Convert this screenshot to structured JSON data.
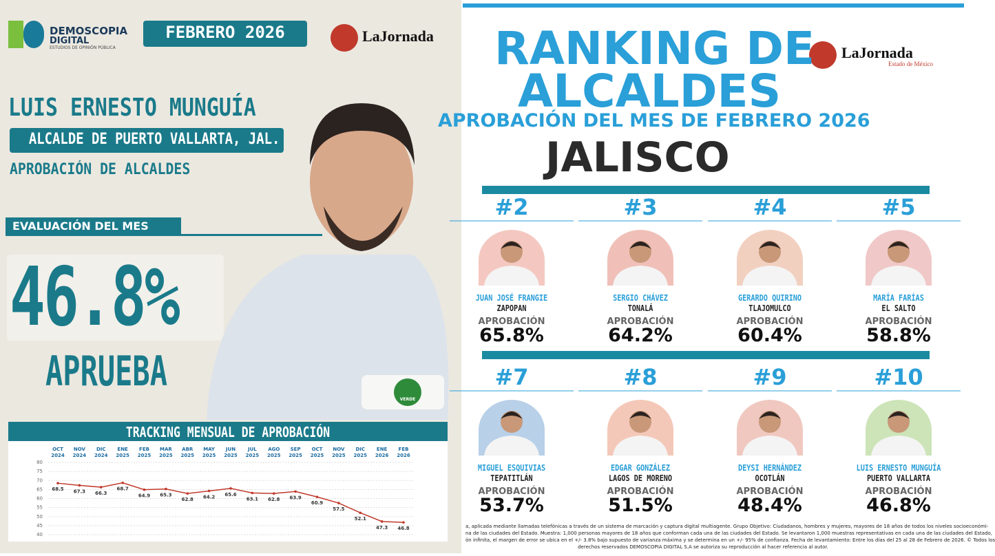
{
  "header": {
    "brand": "DEMOSCOPIA",
    "brand2": "DIGITAL",
    "brand_sub": "ESTUDIOS DE OPINIÓN PÚBLICA",
    "date": "FEBRERO 2026",
    "partner": "LaJornada",
    "partner_sub": "Estado de México"
  },
  "profile": {
    "name": "LUIS ERNESTO MUNGUÍA",
    "role": "ALCALDE DE PUERTO VALLARTA, JAL.",
    "section": "APROBACIÓN DE ALCALDES",
    "eval_label": "EVALUACIÓN DEL MES",
    "score": "46.8%",
    "verdict": "APRUEBA",
    "party": "VERDE"
  },
  "chart_data": {
    "type": "line",
    "title": "TRACKING MENSUAL DE APROBACIÓN",
    "categories": [
      "OCT 2024",
      "NOV 2024",
      "DIC 2024",
      "ENE 2025",
      "FEB 2025",
      "MAR 2025",
      "ABR 2025",
      "MAY 2025",
      "JUN 2025",
      "JUL 2025",
      "AGO 2025",
      "SEP 2025",
      "OCT 2025",
      "NOV 2025",
      "DIC 2025",
      "ENE 2026",
      "FEB 2026"
    ],
    "values": [
      68.5,
      67.3,
      66.3,
      68.7,
      64.9,
      65.3,
      62.8,
      64.2,
      65.6,
      63.1,
      62.8,
      63.9,
      60.9,
      57.5,
      52.1,
      47.3,
      46.8
    ],
    "color": "#c0392b",
    "ylim": [
      40,
      80
    ],
    "yticks": [
      40,
      45,
      50,
      55,
      60,
      65,
      70,
      75,
      80
    ],
    "grid": true
  },
  "ranking": {
    "title_1": "RANKING DE",
    "title_2": "ALCALDES",
    "subtitle": "APROBACIÓN DEL MES DE FEBRERO 2026",
    "state": "JALISCO",
    "approval_label": "APROBACIÓN",
    "entries": [
      {
        "rank": "#2",
        "name": "JUAN JOSÉ FRANGIE",
        "city": "ZAPOPAN",
        "approval": "65.8%"
      },
      {
        "rank": "#3",
        "name": "SERGIO CHÁVEZ",
        "city": "TONALÁ",
        "approval": "64.2%"
      },
      {
        "rank": "#4",
        "name": "GERARDO QUIRINO",
        "city": "TLAJOMULCO",
        "approval": "60.4%"
      },
      {
        "rank": "#5",
        "name": "MARÍA FARÍAS",
        "city": "EL SALTO",
        "approval": "58.8%"
      },
      {
        "rank": "#7",
        "name": "MIGUEL ESQUIVIAS",
        "city": "TEPATITLÁN",
        "approval": "53.7%"
      },
      {
        "rank": "#8",
        "name": "EDGAR GONZÁLEZ",
        "city": "LAGOS DE MORENO",
        "approval": "51.5%"
      },
      {
        "rank": "#9",
        "name": "DEYSI HERNÁNDEZ",
        "city": "OCOTLÁN",
        "approval": "48.4%"
      },
      {
        "rank": "#10",
        "name": "LUIS ERNESTO MUNGUÍA",
        "city": "PUERTO VALLARTA",
        "approval": "46.8%"
      }
    ]
  },
  "footnote": [
    "a, aplicada mediante llamadas telefónicas a través de un sistema de marcación y captura digital multiagente. Grupo Objetivo: Ciudadanos, hombres y mujeres, mayores de 18 años de todos los niveles socioeconómi-",
    "na de las ciudades del Estado. Muestra: 1,000 personas mayores de 18 años que conforman cada una de las ciudades del Estado. Se levantaron 1,000 muestras representativas en cada una de las ciudades del Estado,",
    "ón infinita, el margen de error se ubica en el +/- 3.8% bajo supuesto de varianza máxima y se determina en un +/- 95% de confianza. Fecha de levantamiento: Entre los días del 25 al 28 de Febrero de 2026. © Todos los",
    "derechos reservados DEMOSCOPIA DIGITAL S.A se autoriza su reproducción al hacer referencia al autor."
  ]
}
